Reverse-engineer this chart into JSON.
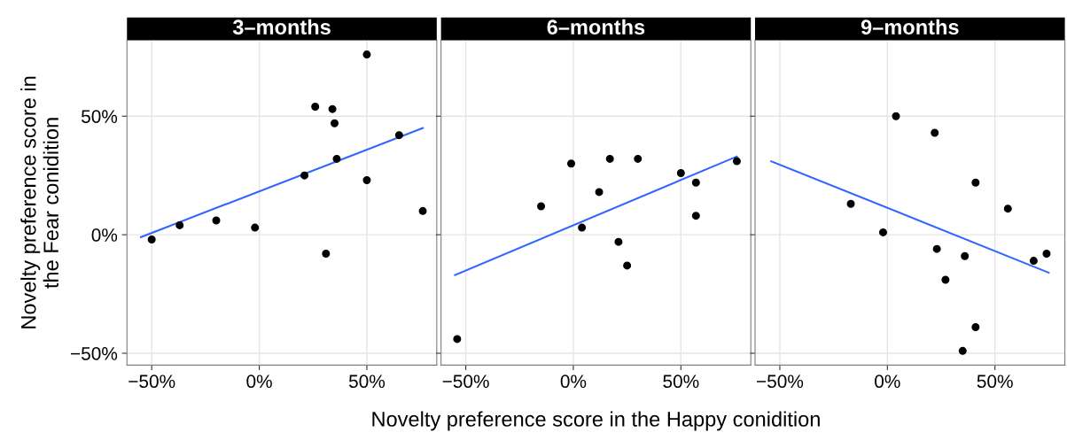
{
  "chart_data": [
    {
      "type": "scatter",
      "title": "3–months",
      "ylabel": "Novelty preference score in\nthe Fear conidition",
      "xlim": [
        -61.5,
        82.5
      ],
      "ylim": [
        -55,
        82
      ],
      "xticks": [
        {
          "value": -50,
          "label": "−50%"
        },
        {
          "value": 0,
          "label": "0%"
        },
        {
          "value": 50,
          "label": "50%"
        }
      ],
      "yticks": [
        {
          "value": -50,
          "label": "−50%"
        },
        {
          "value": 0,
          "label": "0%"
        },
        {
          "value": 50,
          "label": "50%"
        }
      ],
      "grid": true,
      "series": [
        {
          "color": "#000000",
          "marker": "circle",
          "x": [
            -50,
            -37,
            -20,
            -2,
            21,
            26,
            34,
            35,
            36,
            31,
            50,
            50,
            65,
            76
          ],
          "values": [
            -2,
            4,
            6,
            3,
            25,
            54,
            53,
            47,
            32,
            -8,
            76,
            23,
            42,
            10
          ]
        },
        {
          "type": "line",
          "color": "#3366ff",
          "x": [
            -55,
            76
          ],
          "values": [
            -1,
            45
          ]
        }
      ]
    },
    {
      "type": "scatter",
      "title": "6–months",
      "xlabel": "Novelty preference score in the Happy conidition",
      "xlim": [
        -61.5,
        82.5
      ],
      "ylim": [
        -55,
        82
      ],
      "xticks": [
        {
          "value": -50,
          "label": "−50%"
        },
        {
          "value": 0,
          "label": "0%"
        },
        {
          "value": 50,
          "label": "50%"
        }
      ],
      "yticks": [
        {
          "value": -50,
          "label": null
        },
        {
          "value": 0,
          "label": null
        },
        {
          "value": 50,
          "label": null
        }
      ],
      "tick_labels": "x",
      "grid": true,
      "series": [
        {
          "color": "#000000",
          "marker": "circle",
          "x": [
            -54,
            -15,
            -1,
            4,
            12,
            17,
            21,
            25,
            30,
            50,
            57,
            57,
            76
          ],
          "values": [
            -44,
            12,
            30,
            3,
            18,
            32,
            -3,
            -13,
            32,
            26,
            22,
            8,
            31
          ]
        },
        {
          "type": "line",
          "color": "#3366ff",
          "x": [
            -55,
            76
          ],
          "values": [
            -17,
            33
          ]
        }
      ]
    },
    {
      "type": "scatter",
      "title": "9–months",
      "xlim": [
        -61.5,
        82.5
      ],
      "ylim": [
        -55,
        82
      ],
      "xticks": [
        {
          "value": -50,
          "label": "−50%"
        },
        {
          "value": 0,
          "label": "0%"
        },
        {
          "value": 50,
          "label": "50%"
        }
      ],
      "yticks": [
        {
          "value": -50,
          "label": null
        },
        {
          "value": 0,
          "label": null
        },
        {
          "value": 50,
          "label": null
        }
      ],
      "tick_labels": "x",
      "grid": true,
      "series": [
        {
          "color": "#000000",
          "marker": "circle",
          "x": [
            -17,
            -2,
            4,
            22,
            23,
            27,
            36,
            41,
            41,
            35,
            56,
            68,
            74
          ],
          "values": [
            13,
            1,
            50,
            43,
            -6,
            -19,
            -9,
            22,
            -39,
            -49,
            11,
            -11,
            -8
          ]
        },
        {
          "type": "line",
          "color": "#3366ff",
          "x": [
            -54,
            75
          ],
          "values": [
            31,
            -16
          ]
        }
      ]
    }
  ]
}
